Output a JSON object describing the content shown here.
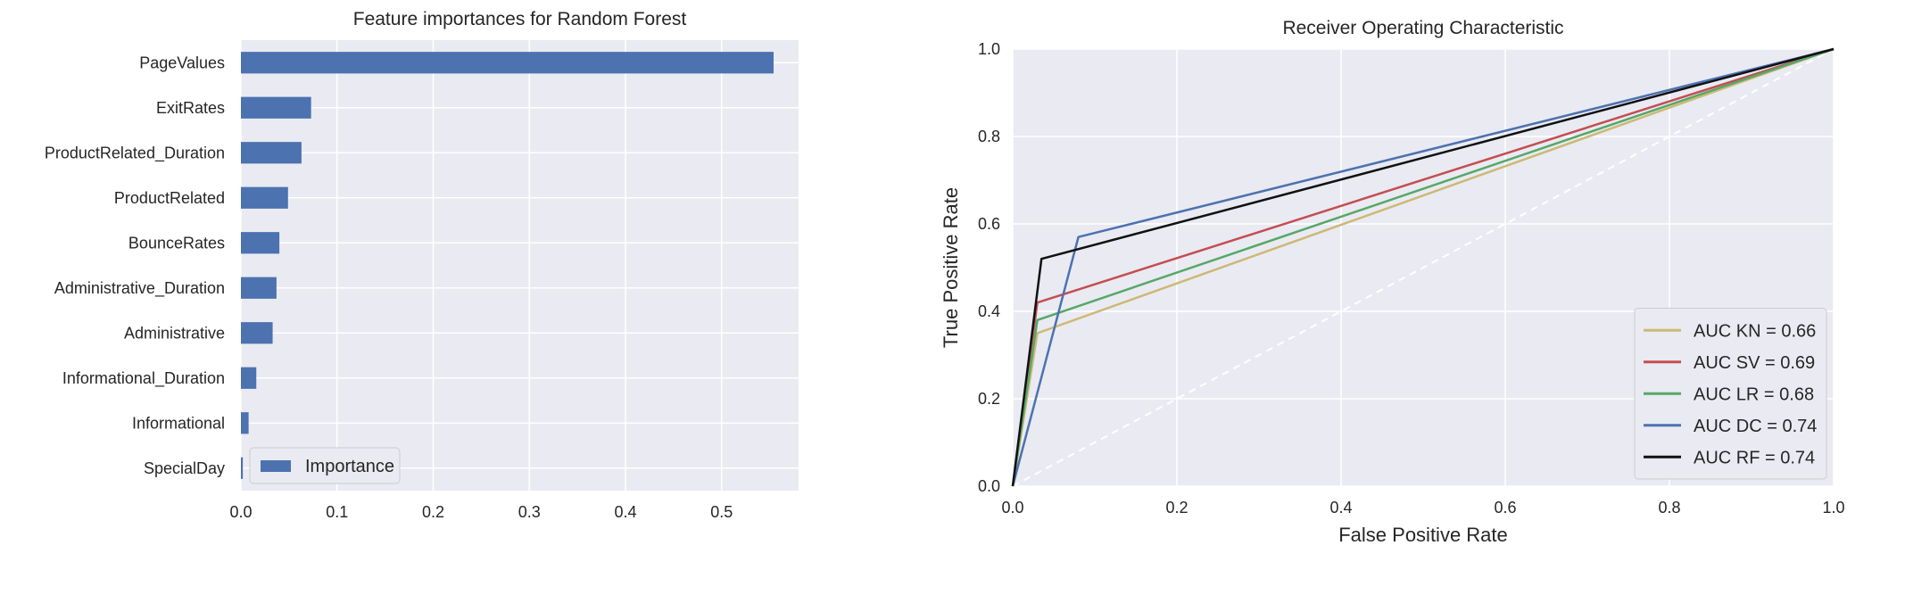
{
  "chart_data": [
    {
      "type": "bar",
      "orientation": "horizontal",
      "title": "Feature importances for Random Forest",
      "categories": [
        "PageValues",
        "ExitRates",
        "ProductRelated_Duration",
        "ProductRelated",
        "BounceRates",
        "Administrative_Duration",
        "Administrative",
        "Informational_Duration",
        "Informational",
        "SpecialDay"
      ],
      "series": [
        {
          "name": "Importance",
          "values": [
            0.554,
            0.073,
            0.063,
            0.049,
            0.04,
            0.037,
            0.033,
            0.016,
            0.008,
            0.002
          ],
          "color": "#4c72b0"
        }
      ],
      "xlabel": "",
      "ylabel": "",
      "xlim": [
        0,
        0.58
      ],
      "xticks": [
        0,
        0.1,
        0.2,
        0.3,
        0.4,
        0.5
      ],
      "xtick_labels": [
        "0.0",
        "0.1",
        "0.2",
        "0.3",
        "0.4",
        "0.5"
      ],
      "grid": true,
      "background": "#eaeaf2",
      "legend_position": "lower-left"
    },
    {
      "type": "line",
      "title": "Receiver Operating Characteristic",
      "xlabel": "False Positive Rate",
      "ylabel": "True Positive Rate",
      "xlim": [
        0,
        1
      ],
      "ylim": [
        0,
        1
      ],
      "xticks": [
        0,
        0.2,
        0.4,
        0.6,
        0.8,
        1.0
      ],
      "yticks": [
        0,
        0.2,
        0.4,
        0.6,
        0.8,
        1.0
      ],
      "xtick_labels": [
        "0.0",
        "0.2",
        "0.4",
        "0.6",
        "0.8",
        "1.0"
      ],
      "ytick_labels": [
        "0.0",
        "0.2",
        "0.4",
        "0.6",
        "0.8",
        "1.0"
      ],
      "grid": true,
      "background": "#eaeaf2",
      "legend_position": "lower-right",
      "series": [
        {
          "name": "AUC KN = 0.66",
          "color": "#ccb974",
          "x": [
            0,
            0.03,
            1
          ],
          "y": [
            0,
            0.35,
            1
          ]
        },
        {
          "name": "AUC SV = 0.69",
          "color": "#c44e52",
          "x": [
            0,
            0.03,
            1
          ],
          "y": [
            0,
            0.42,
            1
          ]
        },
        {
          "name": "AUC LR = 0.68",
          "color": "#55a868",
          "x": [
            0,
            0.03,
            1
          ],
          "y": [
            0,
            0.38,
            1
          ]
        },
        {
          "name": "AUC DC = 0.74",
          "color": "#4c72b0",
          "x": [
            0,
            0.08,
            1
          ],
          "y": [
            0,
            0.57,
            1
          ]
        },
        {
          "name": "AUC RF = 0.74",
          "color": "#111111",
          "x": [
            0,
            0.035,
            1
          ],
          "y": [
            0,
            0.52,
            1
          ]
        }
      ],
      "reference_line": {
        "x": [
          0,
          1
        ],
        "y": [
          0,
          1
        ],
        "color": "#ffffff",
        "style": "dashed"
      }
    }
  ]
}
